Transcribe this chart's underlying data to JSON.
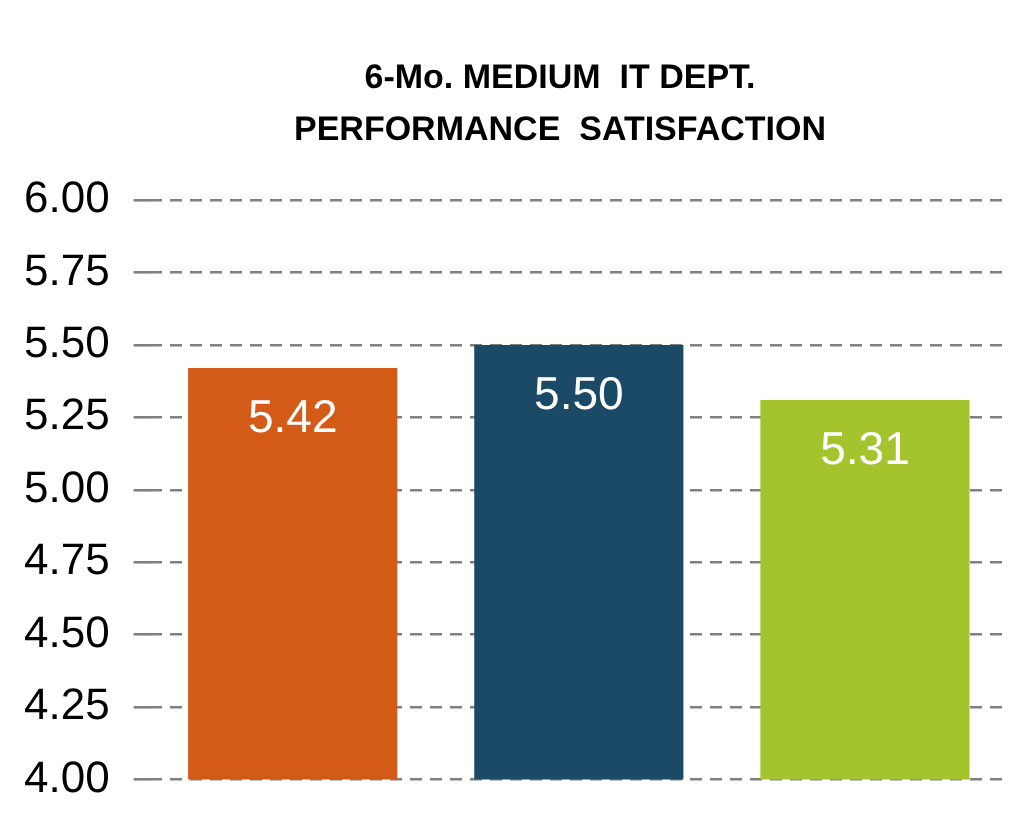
{
  "chart_data": {
    "type": "bar",
    "title": "6-Mo. MEDIUM  IT DEPT.\nPERFORMANCE  SATISFACTION",
    "categories": [
      null,
      null,
      null
    ],
    "values": [
      5.42,
      5.5,
      5.31
    ],
    "colors": [
      "#d35a17",
      "#1b4a66",
      "#a3c42c"
    ],
    "ylim": [
      4,
      6
    ],
    "yticks": [
      {
        "value": 4,
        "label": "4.00"
      },
      {
        "value": 4.25,
        "label": "4.25"
      },
      {
        "value": 4.5,
        "label": "4.50"
      },
      {
        "value": 4.75,
        "label": "4.75"
      },
      {
        "value": 5,
        "label": "5.00"
      },
      {
        "value": 5.25,
        "label": "5.25"
      },
      {
        "value": 5.5,
        "label": "5.50"
      },
      {
        "value": 5.75,
        "label": "5.75"
      },
      {
        "value": 6,
        "label": "6.00"
      }
    ],
    "value_labels": [
      "5.42",
      "5.50",
      "5.31"
    ],
    "grid": "y",
    "legend": false
  }
}
